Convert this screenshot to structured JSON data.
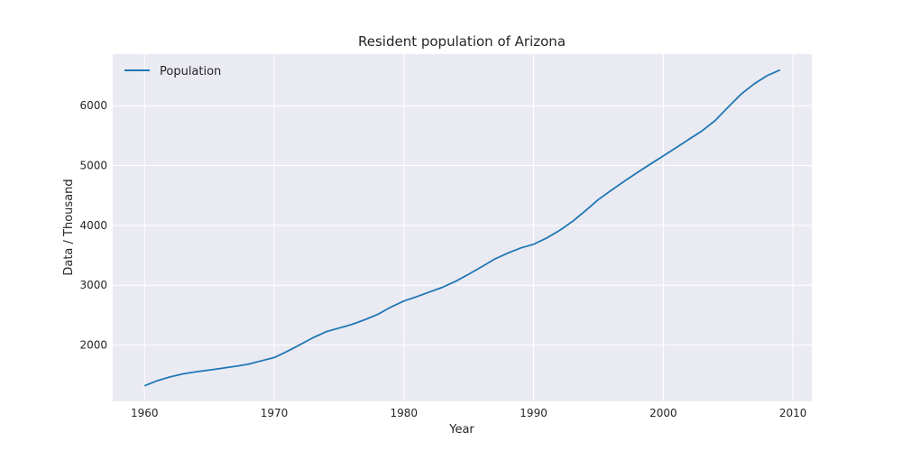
{
  "chart_data": {
    "type": "line",
    "title": "Resident population of Arizona",
    "xlabel": "Year",
    "ylabel": "Data / Thousand",
    "xlim": [
      1957.55,
      2011.45
    ],
    "ylim": [
      1060,
      6860
    ],
    "xticks": [
      1960,
      1970,
      1980,
      1990,
      2000,
      2010
    ],
    "yticks": [
      2000,
      3000,
      4000,
      5000,
      6000
    ],
    "grid": true,
    "legend_position": "top-left",
    "colors": {
      "background": "#eaeaf2",
      "grid": "#ffffff",
      "line": "#1f77b4"
    },
    "series": [
      {
        "name": "Population",
        "x": [
          1960,
          1961,
          1962,
          1963,
          1964,
          1965,
          1966,
          1967,
          1968,
          1969,
          1970,
          1971,
          1972,
          1973,
          1974,
          1975,
          1976,
          1977,
          1978,
          1979,
          1980,
          1981,
          1982,
          1983,
          1984,
          1985,
          1986,
          1987,
          1988,
          1989,
          1990,
          1991,
          1992,
          1993,
          1994,
          1995,
          1996,
          1997,
          1998,
          1999,
          2000,
          2001,
          2002,
          2003,
          2004,
          2005,
          2006,
          2007,
          2008,
          2009
        ],
        "values": [
          1321,
          1407,
          1471,
          1521,
          1555,
          1584,
          1614,
          1646,
          1682,
          1737,
          1792,
          1895,
          2008,
          2124,
          2223,
          2285,
          2346,
          2425,
          2515,
          2636,
          2737,
          2810,
          2889,
          2968,
          3067,
          3184,
          3308,
          3437,
          3535,
          3622,
          3684,
          3788,
          3915,
          4065,
          4245,
          4432,
          4587,
          4737,
          4883,
          5023,
          5160,
          5299,
          5441,
          5580,
          5751,
          5975,
          6192,
          6362,
          6500,
          6596
        ]
      }
    ]
  }
}
